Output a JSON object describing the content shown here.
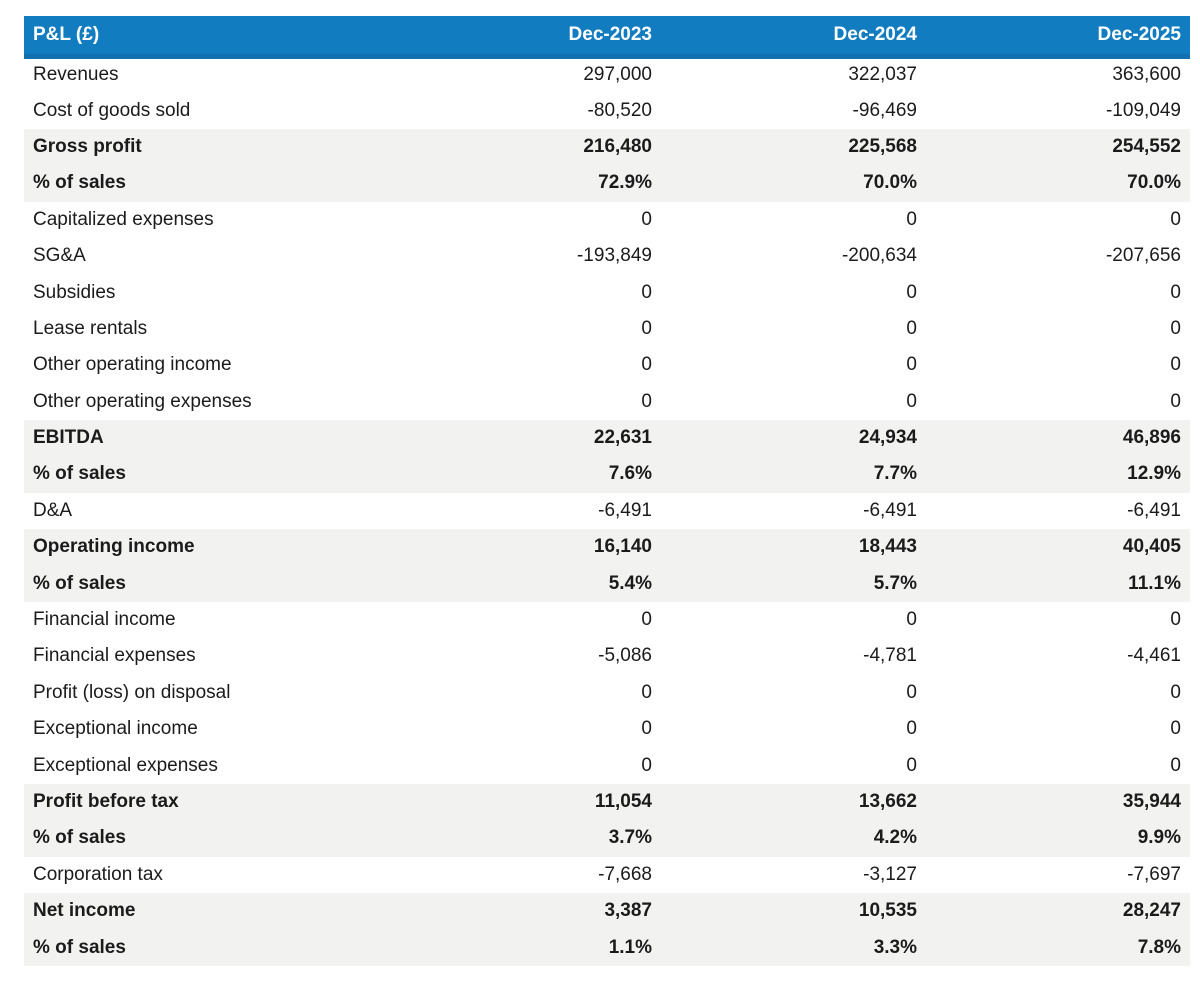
{
  "table": {
    "title": "P&L (£)",
    "columns": [
      "Dec-2023",
      "Dec-2024",
      "Dec-2025"
    ],
    "rows": [
      {
        "label": "Revenues",
        "values": [
          "297,000",
          "322,037",
          "363,600"
        ],
        "style": "normal"
      },
      {
        "label": "Cost of goods sold",
        "values": [
          "-80,520",
          "-96,469",
          "-109,049"
        ],
        "style": "normal"
      },
      {
        "label": "Gross profit",
        "values": [
          "216,480",
          "225,568",
          "254,552"
        ],
        "style": "subtotal"
      },
      {
        "label": "% of sales",
        "values": [
          "72.9%",
          "70.0%",
          "70.0%"
        ],
        "style": "subtotal"
      },
      {
        "label": "Capitalized expenses",
        "values": [
          "0",
          "0",
          "0"
        ],
        "style": "normal"
      },
      {
        "label": "SG&A",
        "values": [
          "-193,849",
          "-200,634",
          "-207,656"
        ],
        "style": "normal"
      },
      {
        "label": "Subsidies",
        "values": [
          "0",
          "0",
          "0"
        ],
        "style": "normal"
      },
      {
        "label": "Lease rentals",
        "values": [
          "0",
          "0",
          "0"
        ],
        "style": "normal"
      },
      {
        "label": "Other operating income",
        "values": [
          "0",
          "0",
          "0"
        ],
        "style": "normal"
      },
      {
        "label": "Other operating expenses",
        "values": [
          "0",
          "0",
          "0"
        ],
        "style": "normal"
      },
      {
        "label": "EBITDA",
        "values": [
          "22,631",
          "24,934",
          "46,896"
        ],
        "style": "subtotal"
      },
      {
        "label": "% of sales",
        "values": [
          "7.6%",
          "7.7%",
          "12.9%"
        ],
        "style": "subtotal"
      },
      {
        "label": "D&A",
        "values": [
          "-6,491",
          "-6,491",
          "-6,491"
        ],
        "style": "normal"
      },
      {
        "label": "Operating income",
        "values": [
          "16,140",
          "18,443",
          "40,405"
        ],
        "style": "subtotal"
      },
      {
        "label": "% of sales",
        "values": [
          "5.4%",
          "5.7%",
          "11.1%"
        ],
        "style": "subtotal"
      },
      {
        "label": "Financial income",
        "values": [
          "0",
          "0",
          "0"
        ],
        "style": "normal"
      },
      {
        "label": "Financial expenses",
        "values": [
          "-5,086",
          "-4,781",
          "-4,461"
        ],
        "style": "normal"
      },
      {
        "label": "Profit (loss) on disposal",
        "values": [
          "0",
          "0",
          "0"
        ],
        "style": "normal"
      },
      {
        "label": "Exceptional income",
        "values": [
          "0",
          "0",
          "0"
        ],
        "style": "normal"
      },
      {
        "label": "Exceptional expenses",
        "values": [
          "0",
          "0",
          "0"
        ],
        "style": "normal"
      },
      {
        "label": "Profit before tax",
        "values": [
          "11,054",
          "13,662",
          "35,944"
        ],
        "style": "subtotal"
      },
      {
        "label": "% of sales",
        "values": [
          "3.7%",
          "4.2%",
          "9.9%"
        ],
        "style": "subtotal"
      },
      {
        "label": "Corporation tax",
        "values": [
          "-7,668",
          "-3,127",
          "-7,697"
        ],
        "style": "normal"
      },
      {
        "label": "Net income",
        "values": [
          "3,387",
          "10,535",
          "28,247"
        ],
        "style": "subtotal"
      },
      {
        "label": "% of sales",
        "values": [
          "1.1%",
          "3.3%",
          "7.8%"
        ],
        "style": "subtotal"
      }
    ],
    "colors": {
      "header_bg": "#127cc1",
      "header_border": "#1170b0",
      "header_text": "#ffffff",
      "subtotal_bg": "#f2f2f1",
      "body_text": "#1b1b1b"
    }
  },
  "chart_data": {
    "type": "table",
    "title": "P&L (£)",
    "categories": [
      "Revenues",
      "Cost of goods sold",
      "Gross profit",
      "% of sales",
      "Capitalized expenses",
      "SG&A",
      "Subsidies",
      "Lease rentals",
      "Other operating income",
      "Other operating expenses",
      "EBITDA",
      "% of sales",
      "D&A",
      "Operating income",
      "% of sales",
      "Financial income",
      "Financial expenses",
      "Profit (loss) on disposal",
      "Exceptional income",
      "Exceptional expenses",
      "Profit before tax",
      "% of sales",
      "Corporation tax",
      "Net income",
      "% of sales"
    ],
    "series": [
      {
        "name": "Dec-2023",
        "values": [
          297000,
          -80520,
          216480,
          72.9,
          0,
          -193849,
          0,
          0,
          0,
          0,
          22631,
          7.6,
          -6491,
          16140,
          5.4,
          0,
          -5086,
          0,
          0,
          0,
          11054,
          3.7,
          -7668,
          3387,
          1.1
        ]
      },
      {
        "name": "Dec-2024",
        "values": [
          322037,
          -96469,
          225568,
          70.0,
          0,
          -200634,
          0,
          0,
          0,
          0,
          24934,
          7.7,
          -6491,
          18443,
          5.7,
          0,
          -4781,
          0,
          0,
          0,
          13662,
          4.2,
          -3127,
          10535,
          3.3
        ]
      },
      {
        "name": "Dec-2025",
        "values": [
          363600,
          -109049,
          254552,
          70.0,
          0,
          -207656,
          0,
          0,
          0,
          0,
          46896,
          12.9,
          -6491,
          40405,
          11.1,
          0,
          -4461,
          0,
          0,
          0,
          35944,
          9.9,
          -7697,
          28247,
          7.8
        ]
      }
    ],
    "units": "GBP; '% of sales' rows are percentages",
    "legend_position": "none",
    "grid": false
  }
}
